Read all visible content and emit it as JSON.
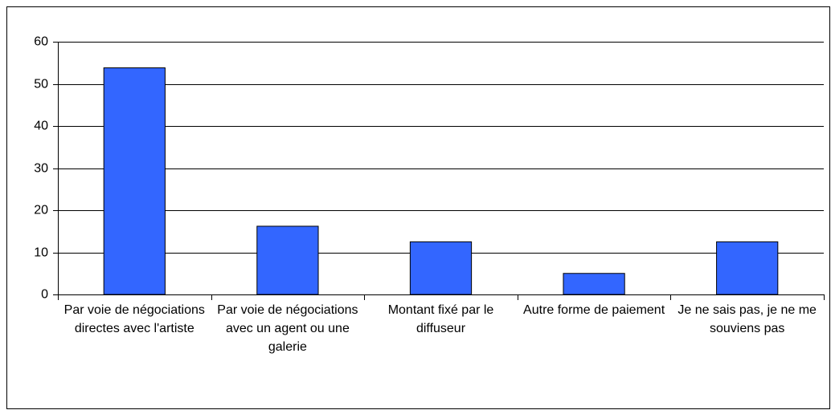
{
  "chart_data": {
    "type": "bar",
    "categories": [
      "Par voie de négociations directes avec l'artiste",
      "Par voie de négociations avec un agent ou une galerie",
      "Montant fixé par le diffuseur",
      "Autre forme de paiement",
      "Je ne sais pas, je ne me souviens pas"
    ],
    "values": [
      53.8,
      16.2,
      12.5,
      5,
      12.5
    ],
    "color": "#3366ff",
    "ylim": [
      0,
      60
    ],
    "yticks": [
      0,
      10,
      20,
      30,
      40,
      50,
      60
    ],
    "grid": true
  }
}
